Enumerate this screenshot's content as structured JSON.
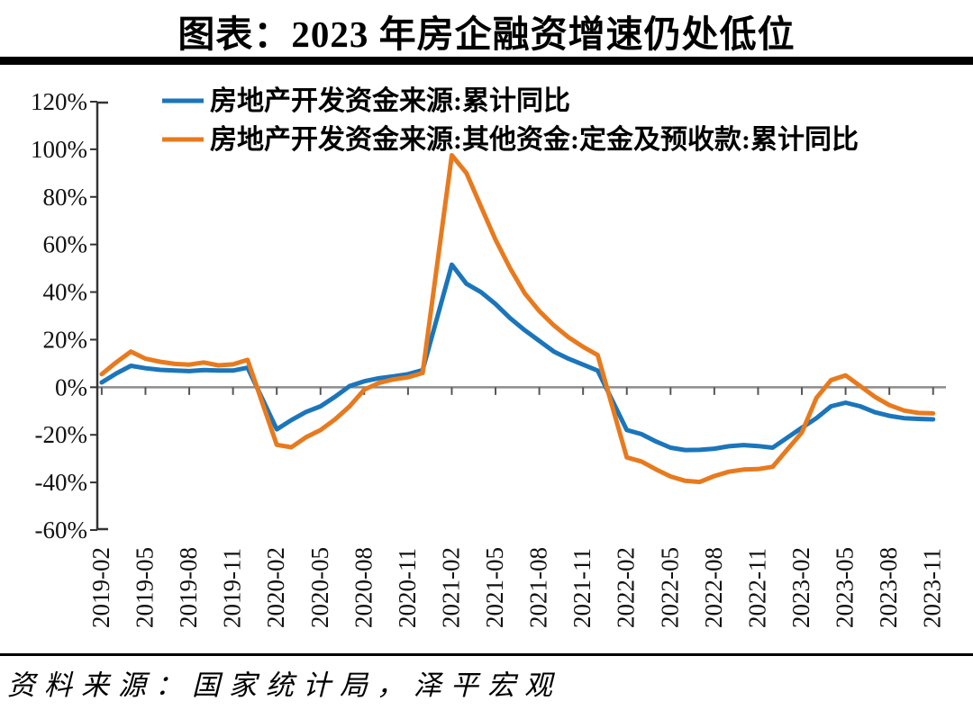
{
  "page": {
    "title": "图表：2023 年房企融资增速仍处低位",
    "source": "资料来源：国家统计局，泽平宏观"
  },
  "colors": {
    "series1_blue": "#1b75bb",
    "series2_orange": "#e87a1e",
    "zero_line_gray": "#8c8c8c",
    "axis_black": "#333333",
    "band_black": "#000000"
  },
  "chart_data": {
    "type": "line",
    "title": "图表：2023 年房企融资增速仍处低位",
    "xlabel": "",
    "ylabel": "",
    "ylim": [
      -60,
      120
    ],
    "y_tick_step": 20,
    "grid": "zero-line-only",
    "legend_position": "top-left-inside",
    "y_tick_labels": [
      "120%",
      "100%",
      "80%",
      "60%",
      "40%",
      "20%",
      "0%",
      "-20%",
      "-40%",
      "-60%"
    ],
    "x_tick_labels": [
      "2019-02",
      "2019-05",
      "2019-08",
      "2019-11",
      "2020-02",
      "2020-05",
      "2020-08",
      "2020-11",
      "2021-02",
      "2021-05",
      "2021-08",
      "2021-11",
      "2022-02",
      "2022-05",
      "2022-08",
      "2022-11",
      "2023-02",
      "2023-05",
      "2023-08",
      "2023-11"
    ],
    "months": [
      "2019-02",
      "2019-03",
      "2019-04",
      "2019-05",
      "2019-06",
      "2019-07",
      "2019-08",
      "2019-09",
      "2019-10",
      "2019-11",
      "2019-12",
      "2020-02",
      "2020-03",
      "2020-04",
      "2020-05",
      "2020-06",
      "2020-07",
      "2020-08",
      "2020-09",
      "2020-10",
      "2020-11",
      "2020-12",
      "2021-02",
      "2021-03",
      "2021-04",
      "2021-05",
      "2021-06",
      "2021-07",
      "2021-08",
      "2021-09",
      "2021-10",
      "2021-11",
      "2021-12",
      "2022-02",
      "2022-03",
      "2022-04",
      "2022-05",
      "2022-06",
      "2022-07",
      "2022-08",
      "2022-09",
      "2022-10",
      "2022-11",
      "2022-12",
      "2023-02",
      "2023-03",
      "2023-04",
      "2023-05",
      "2023-06",
      "2023-07",
      "2023-08",
      "2023-09",
      "2023-10",
      "2023-11"
    ],
    "series": [
      {
        "name": "房地产开发资金来源:累计同比",
        "color": "#1b75bb",
        "unit": "%",
        "values": [
          2.0,
          5.8,
          9.0,
          8.0,
          7.3,
          7.0,
          6.8,
          7.2,
          7.0,
          7.0,
          8.2,
          -17.7,
          -13.8,
          -10.4,
          -8.0,
          -4.0,
          0.5,
          2.5,
          3.8,
          4.6,
          5.5,
          7.2,
          51.5,
          43.5,
          40.0,
          35.0,
          29.0,
          24.0,
          19.5,
          15.0,
          12.0,
          9.5,
          7.0,
          -18.0,
          -19.7,
          -22.8,
          -25.4,
          -26.4,
          -26.3,
          -25.8,
          -24.8,
          -24.3,
          -24.7,
          -25.4,
          -17.0,
          -13.0,
          -8.0,
          -6.5,
          -8.0,
          -10.5,
          -12.0,
          -13.0,
          -13.3,
          -13.5
        ]
      },
      {
        "name": "房地产开发资金来源:其他资金:定金及预收款:累计同比",
        "color": "#e87a1e",
        "unit": "%",
        "values": [
          5.5,
          10.5,
          15.0,
          12.0,
          10.7,
          9.8,
          9.5,
          10.4,
          9.2,
          9.6,
          11.5,
          -24.2,
          -25.2,
          -21.0,
          -18.0,
          -13.5,
          -8.0,
          -1.0,
          1.8,
          3.3,
          4.2,
          6.0,
          97.5,
          90.0,
          76.0,
          62.0,
          50.0,
          39.5,
          32.0,
          26.0,
          21.0,
          17.0,
          13.5,
          -29.5,
          -31.2,
          -34.5,
          -37.5,
          -39.3,
          -39.8,
          -37.3,
          -35.5,
          -34.6,
          -34.4,
          -33.4,
          -19.0,
          -4.5,
          3.0,
          5.0,
          0.5,
          -4.0,
          -7.5,
          -9.8,
          -10.8,
          -11.0
        ]
      }
    ],
    "note_visible_features": "only the 0% horizontal gridline is drawn; x tick marks hang below the 0% line; no January data points (lines connect Dec to Feb)"
  }
}
